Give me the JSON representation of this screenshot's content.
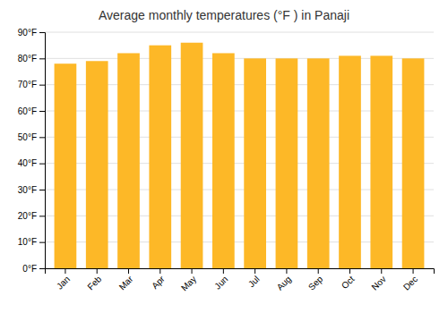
{
  "chart_data": {
    "type": "bar",
    "title": "Average monthly temperatures (°F ) in Panaji",
    "categories": [
      "Jan",
      "Feb",
      "Mar",
      "Apr",
      "May",
      "Jun",
      "Jul",
      "Aug",
      "Sep",
      "Oct",
      "Nov",
      "Dec"
    ],
    "values": [
      78,
      79,
      82,
      85,
      86,
      82,
      80,
      80,
      80,
      81,
      81,
      80
    ],
    "color": "#FDB827",
    "ylim": [
      0,
      90
    ],
    "yticks": [
      {
        "value": 0,
        "label": "0°F"
      },
      {
        "value": 10,
        "label": "10°F"
      },
      {
        "value": 20,
        "label": "20°F"
      },
      {
        "value": 30,
        "label": "30°F"
      },
      {
        "value": 40,
        "label": "40°F"
      },
      {
        "value": 50,
        "label": "50°F"
      },
      {
        "value": 60,
        "label": "60°F"
      },
      {
        "value": 70,
        "label": "70°F"
      },
      {
        "value": 80,
        "label": "80°F"
      },
      {
        "value": 90,
        "label": "90°F"
      }
    ],
    "grid": true
  }
}
